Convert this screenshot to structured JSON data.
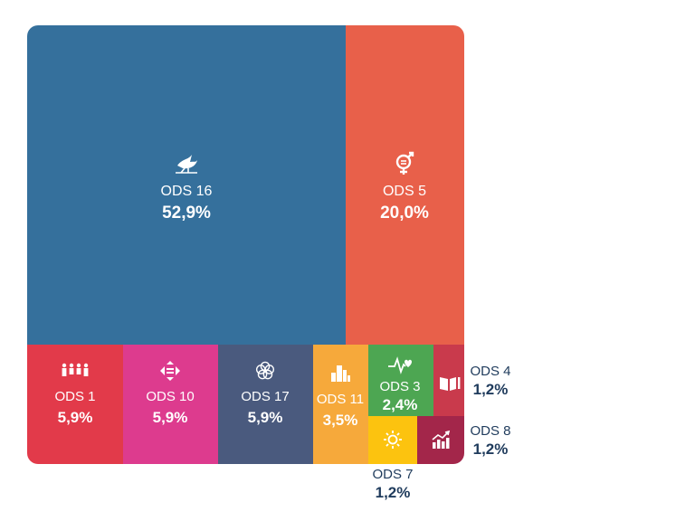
{
  "chart_data": {
    "type": "treemap",
    "title": "",
    "items": [
      {
        "name": "ODS 16",
        "value_label": "52,9%",
        "value": 52.9,
        "color": "#35709c",
        "icon": "dove-icon"
      },
      {
        "name": "ODS 5",
        "value_label": "20,0%",
        "value": 20.0,
        "color": "#e8604a",
        "icon": "gender-symbol-icon"
      },
      {
        "name": "ODS 1",
        "value_label": "5,9%",
        "value": 5.9,
        "color": "#e23a4a",
        "icon": "family-icon"
      },
      {
        "name": "ODS 10",
        "value_label": "5,9%",
        "value": 5.9,
        "color": "#dd3b8e",
        "icon": "equality-arrows-icon"
      },
      {
        "name": "ODS 17",
        "value_label": "5,9%",
        "value": 5.9,
        "color": "#4a5a7e",
        "icon": "flower-icon"
      },
      {
        "name": "ODS 11",
        "value_label": "3,5%",
        "value": 3.5,
        "color": "#f6a93b",
        "icon": "city-icon"
      },
      {
        "name": "ODS 3",
        "value_label": "2,4%",
        "value": 2.4,
        "color": "#4da652",
        "icon": "heartbeat-icon"
      },
      {
        "name": "ODS 4",
        "value_label": "1,2%",
        "value": 1.2,
        "color": "#c93a4c",
        "icon": "book-icon"
      },
      {
        "name": "ODS 7",
        "value_label": "1,2%",
        "value": 1.2,
        "color": "#fcc30f",
        "icon": "sun-icon"
      },
      {
        "name": "ODS 8",
        "value_label": "1,2%",
        "value": 1.2,
        "color": "#a3264a",
        "icon": "growth-chart-icon"
      }
    ]
  }
}
